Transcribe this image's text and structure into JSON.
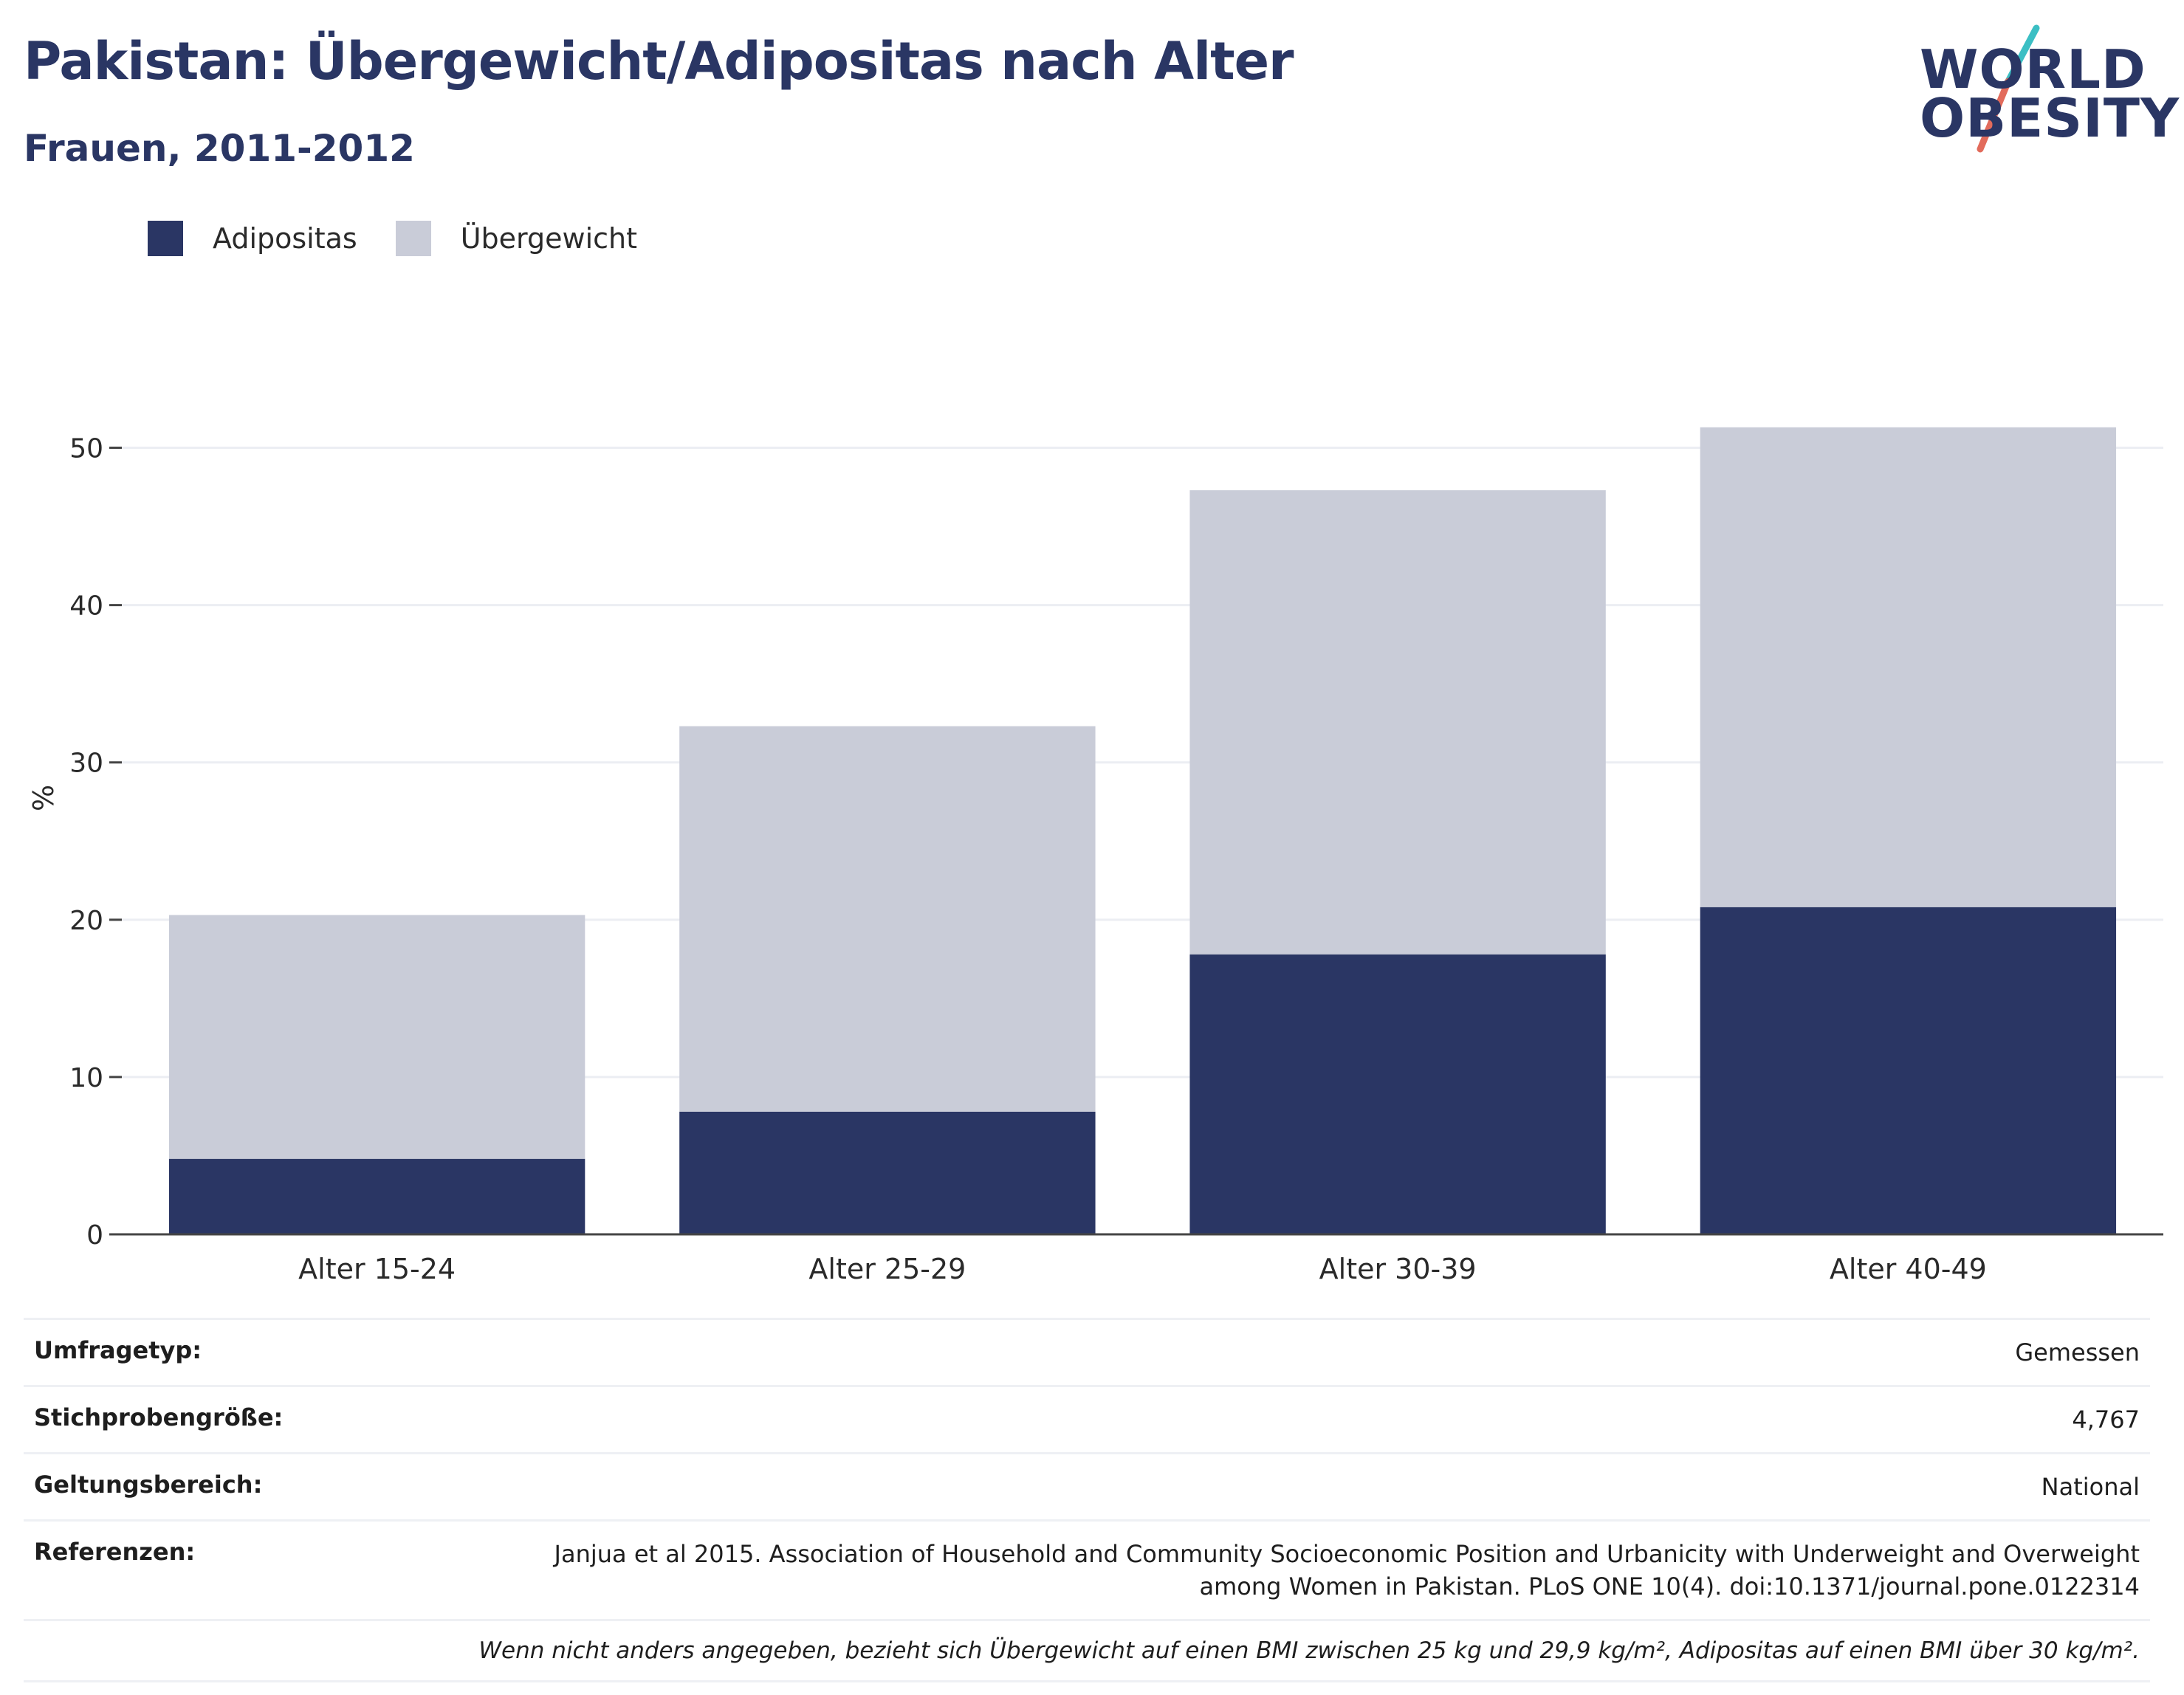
{
  "header": {
    "title": "Pakistan: Übergewicht/Adipositas nach Alter",
    "subtitle": "Frauen, 2011-2012"
  },
  "logo": {
    "line1": "WORLD",
    "line2": "OBESITY",
    "accent_colors": [
      "#3bbfc4",
      "#e26b5b"
    ]
  },
  "colors": {
    "obesity": "#2a3664",
    "overweight": "#c9ccd8",
    "grid": "#eceef3",
    "axis": "#444444"
  },
  "chart_data": {
    "type": "bar",
    "stacked": true,
    "categories": [
      "Alter 15-24",
      "Alter 25-29",
      "Alter 30-39",
      "Alter 40-49"
    ],
    "series": [
      {
        "name": "Adipositas",
        "values": [
          4.8,
          7.8,
          17.8,
          20.8
        ]
      },
      {
        "name": "Übergewicht",
        "values": [
          15.5,
          24.5,
          29.5,
          30.5
        ]
      }
    ],
    "totals": [
      20.3,
      32.3,
      47.3,
      51.3
    ],
    "ylabel": "%",
    "xlabel": "",
    "ylim": [
      0,
      55
    ],
    "yticks": [
      "0",
      "10",
      "20",
      "30",
      "40",
      "50"
    ],
    "grid": true,
    "legend_position": "top-left"
  },
  "meta": [
    {
      "key": "Umfragetyp:",
      "value": "Gemessen"
    },
    {
      "key": "Stichprobengröße:",
      "value": "4,767"
    },
    {
      "key": "Geltungsbereich:",
      "value": "National"
    },
    {
      "key": "Referenzen:",
      "value": "Janjua et al 2015. Association of Household and Community Socioeconomic Position and Urbanicity with Underweight and Overweight among Women in Pakistan. PLoS ONE 10(4). doi:10.1371/journal.pone.0122314"
    }
  ],
  "note": "Wenn nicht anders angegeben, bezieht sich Übergewicht auf einen BMI zwischen 25 kg und 29,9 kg/m², Adipositas auf einen BMI über 30 kg/m²."
}
